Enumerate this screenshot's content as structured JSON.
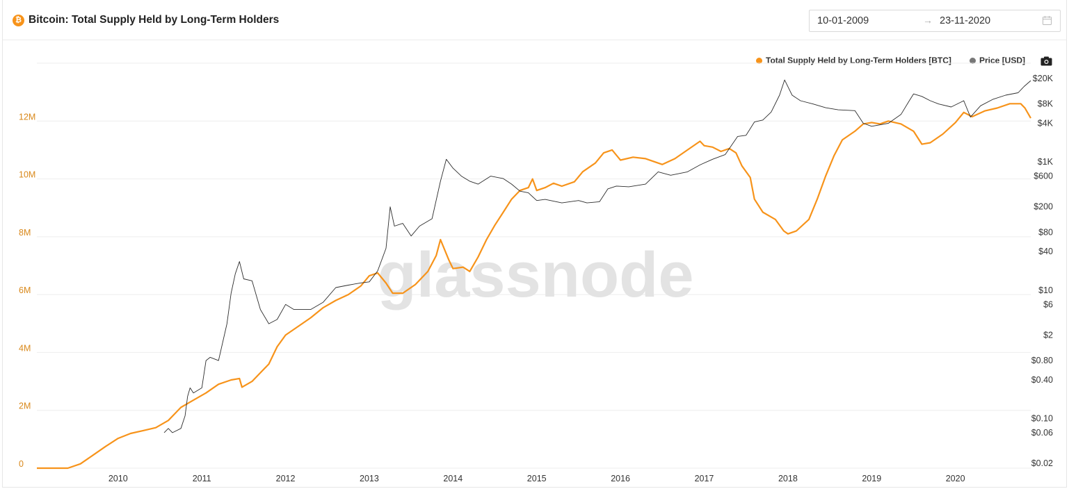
{
  "header": {
    "title": "Bitcoin: Total Supply Held by Long-Term Holders",
    "badge_icon": "bitcoin-icon",
    "date_from": "10-01-2009",
    "date_to": "23-11-2020",
    "arrow": "→",
    "calendar_icon": "calendar-icon"
  },
  "legend": {
    "supply_label": "Total Supply Held by Long-Term Holders [BTC]",
    "price_label": "Price [USD]",
    "camera_icon": "camera-icon"
  },
  "watermark": "glassnode",
  "colors": {
    "supply": "#f7931a",
    "price": "#2b2b2b",
    "grid": "#eeeeee",
    "left_axis": "#d9881a"
  },
  "chart_data": {
    "type": "line",
    "x_ticks": [
      "2010",
      "2011",
      "2012",
      "2013",
      "2014",
      "2015",
      "2016",
      "2017",
      "2018",
      "2019",
      "2020"
    ],
    "x_range": [
      2009.03,
      2020.9
    ],
    "y_left": {
      "ticks": [
        0,
        2000000,
        4000000,
        6000000,
        8000000,
        10000000,
        12000000
      ],
      "tick_labels": [
        "0",
        "2M",
        "4M",
        "6M",
        "8M",
        "10M",
        "12M"
      ],
      "range": [
        0,
        14000000
      ]
    },
    "y_right": {
      "scale": "log",
      "ticks": [
        0.02,
        0.06,
        0.1,
        0.4,
        0.8,
        2,
        6,
        10,
        40,
        80,
        200,
        600,
        1000,
        4000,
        8000,
        20000
      ],
      "tick_labels": [
        "$0.02",
        "$0.06",
        "$0.10",
        "$0.40",
        "$0.80",
        "$2",
        "$6",
        "$10",
        "$40",
        "$80",
        "$200",
        "$600",
        "$1K",
        "$4K",
        "$8K",
        "$20K"
      ]
    },
    "series": [
      {
        "name": "Total Supply Held by Long-Term Holders [BTC]",
        "axis": "left",
        "points": [
          [
            2009.03,
            0
          ],
          [
            2009.4,
            0
          ],
          [
            2009.55,
            150000
          ],
          [
            2009.7,
            450000
          ],
          [
            2009.85,
            750000
          ],
          [
            2010.0,
            1030000
          ],
          [
            2010.15,
            1200000
          ],
          [
            2010.3,
            1300000
          ],
          [
            2010.45,
            1400000
          ],
          [
            2010.6,
            1650000
          ],
          [
            2010.75,
            2100000
          ],
          [
            2010.9,
            2350000
          ],
          [
            2011.05,
            2600000
          ],
          [
            2011.2,
            2900000
          ],
          [
            2011.35,
            3050000
          ],
          [
            2011.45,
            3100000
          ],
          [
            2011.48,
            2800000
          ],
          [
            2011.6,
            3000000
          ],
          [
            2011.7,
            3300000
          ],
          [
            2011.8,
            3600000
          ],
          [
            2011.9,
            4200000
          ],
          [
            2012.0,
            4600000
          ],
          [
            2012.15,
            4900000
          ],
          [
            2012.3,
            5200000
          ],
          [
            2012.45,
            5550000
          ],
          [
            2012.6,
            5800000
          ],
          [
            2012.75,
            6000000
          ],
          [
            2012.9,
            6300000
          ],
          [
            2013.0,
            6650000
          ],
          [
            2013.1,
            6750000
          ],
          [
            2013.2,
            6400000
          ],
          [
            2013.28,
            6050000
          ],
          [
            2013.4,
            6050000
          ],
          [
            2013.55,
            6350000
          ],
          [
            2013.7,
            6800000
          ],
          [
            2013.8,
            7350000
          ],
          [
            2013.85,
            7900000
          ],
          [
            2013.95,
            7200000
          ],
          [
            2014.0,
            6900000
          ],
          [
            2014.12,
            6950000
          ],
          [
            2014.2,
            6800000
          ],
          [
            2014.3,
            7300000
          ],
          [
            2014.4,
            7900000
          ],
          [
            2014.5,
            8400000
          ],
          [
            2014.6,
            8850000
          ],
          [
            2014.7,
            9300000
          ],
          [
            2014.8,
            9600000
          ],
          [
            2014.9,
            9700000
          ],
          [
            2014.95,
            10000000
          ],
          [
            2015.0,
            9600000
          ],
          [
            2015.1,
            9700000
          ],
          [
            2015.2,
            9850000
          ],
          [
            2015.3,
            9750000
          ],
          [
            2015.45,
            9900000
          ],
          [
            2015.55,
            10250000
          ],
          [
            2015.7,
            10550000
          ],
          [
            2015.8,
            10900000
          ],
          [
            2015.9,
            11000000
          ],
          [
            2016.0,
            10650000
          ],
          [
            2016.15,
            10750000
          ],
          [
            2016.3,
            10700000
          ],
          [
            2016.5,
            10500000
          ],
          [
            2016.65,
            10700000
          ],
          [
            2016.8,
            11000000
          ],
          [
            2016.95,
            11300000
          ],
          [
            2017.0,
            11150000
          ],
          [
            2017.1,
            11100000
          ],
          [
            2017.2,
            10950000
          ],
          [
            2017.3,
            11050000
          ],
          [
            2017.38,
            10900000
          ],
          [
            2017.45,
            10450000
          ],
          [
            2017.55,
            10050000
          ],
          [
            2017.6,
            9300000
          ],
          [
            2017.7,
            8850000
          ],
          [
            2017.85,
            8600000
          ],
          [
            2017.95,
            8200000
          ],
          [
            2018.0,
            8100000
          ],
          [
            2018.1,
            8200000
          ],
          [
            2018.25,
            8600000
          ],
          [
            2018.35,
            9300000
          ],
          [
            2018.45,
            10100000
          ],
          [
            2018.55,
            10800000
          ],
          [
            2018.65,
            11350000
          ],
          [
            2018.8,
            11650000
          ],
          [
            2018.9,
            11900000
          ],
          [
            2019.0,
            11950000
          ],
          [
            2019.1,
            11900000
          ],
          [
            2019.2,
            12000000
          ],
          [
            2019.35,
            11900000
          ],
          [
            2019.5,
            11650000
          ],
          [
            2019.6,
            11200000
          ],
          [
            2019.7,
            11250000
          ],
          [
            2019.85,
            11550000
          ],
          [
            2020.0,
            11950000
          ],
          [
            2020.1,
            12300000
          ],
          [
            2020.2,
            12150000
          ],
          [
            2020.35,
            12350000
          ],
          [
            2020.5,
            12450000
          ],
          [
            2020.65,
            12600000
          ],
          [
            2020.78,
            12600000
          ],
          [
            2020.83,
            12450000
          ],
          [
            2020.9,
            12100000
          ]
        ]
      },
      {
        "name": "Price [USD]",
        "axis": "right",
        "points": [
          [
            2010.55,
            0.06
          ],
          [
            2010.6,
            0.07
          ],
          [
            2010.65,
            0.06
          ],
          [
            2010.75,
            0.07
          ],
          [
            2010.8,
            0.11
          ],
          [
            2010.83,
            0.22
          ],
          [
            2010.86,
            0.3
          ],
          [
            2010.9,
            0.25
          ],
          [
            2011.0,
            0.3
          ],
          [
            2011.05,
            0.8
          ],
          [
            2011.1,
            0.9
          ],
          [
            2011.2,
            0.8
          ],
          [
            2011.3,
            3
          ],
          [
            2011.35,
            9
          ],
          [
            2011.4,
            18
          ],
          [
            2011.45,
            28
          ],
          [
            2011.5,
            15
          ],
          [
            2011.6,
            14
          ],
          [
            2011.7,
            5
          ],
          [
            2011.8,
            3
          ],
          [
            2011.9,
            3.5
          ],
          [
            2012.0,
            6
          ],
          [
            2012.1,
            5
          ],
          [
            2012.3,
            5
          ],
          [
            2012.45,
            6.5
          ],
          [
            2012.6,
            11
          ],
          [
            2012.75,
            12
          ],
          [
            2012.9,
            13
          ],
          [
            2013.0,
            13.5
          ],
          [
            2013.1,
            20
          ],
          [
            2013.2,
            45
          ],
          [
            2013.25,
            200
          ],
          [
            2013.3,
            100
          ],
          [
            2013.4,
            110
          ],
          [
            2013.5,
            70
          ],
          [
            2013.6,
            100
          ],
          [
            2013.75,
            130
          ],
          [
            2013.85,
            500
          ],
          [
            2013.92,
            1100
          ],
          [
            2014.0,
            800
          ],
          [
            2014.1,
            600
          ],
          [
            2014.2,
            500
          ],
          [
            2014.3,
            450
          ],
          [
            2014.45,
            600
          ],
          [
            2014.6,
            550
          ],
          [
            2014.7,
            450
          ],
          [
            2014.8,
            350
          ],
          [
            2014.9,
            330
          ],
          [
            2015.0,
            250
          ],
          [
            2015.1,
            260
          ],
          [
            2015.3,
            230
          ],
          [
            2015.5,
            250
          ],
          [
            2015.6,
            230
          ],
          [
            2015.75,
            240
          ],
          [
            2015.85,
            380
          ],
          [
            2015.95,
            420
          ],
          [
            2016.1,
            410
          ],
          [
            2016.3,
            450
          ],
          [
            2016.45,
            700
          ],
          [
            2016.6,
            620
          ],
          [
            2016.8,
            700
          ],
          [
            2016.95,
            900
          ],
          [
            2017.1,
            1100
          ],
          [
            2017.25,
            1300
          ],
          [
            2017.4,
            2500
          ],
          [
            2017.5,
            2600
          ],
          [
            2017.6,
            4200
          ],
          [
            2017.7,
            4500
          ],
          [
            2017.8,
            6000
          ],
          [
            2017.9,
            11000
          ],
          [
            2017.96,
            19000
          ],
          [
            2018.05,
            11000
          ],
          [
            2018.15,
            9000
          ],
          [
            2018.3,
            8000
          ],
          [
            2018.45,
            7000
          ],
          [
            2018.6,
            6500
          ],
          [
            2018.8,
            6300
          ],
          [
            2018.9,
            4000
          ],
          [
            2019.0,
            3600
          ],
          [
            2019.2,
            4000
          ],
          [
            2019.35,
            5500
          ],
          [
            2019.45,
            9000
          ],
          [
            2019.5,
            11500
          ],
          [
            2019.6,
            10500
          ],
          [
            2019.7,
            9000
          ],
          [
            2019.8,
            8000
          ],
          [
            2019.95,
            7200
          ],
          [
            2020.1,
            9000
          ],
          [
            2020.18,
            5000
          ],
          [
            2020.3,
            7500
          ],
          [
            2020.45,
            9500
          ],
          [
            2020.6,
            11000
          ],
          [
            2020.75,
            12000
          ],
          [
            2020.82,
            15000
          ],
          [
            2020.9,
            18500
          ]
        ]
      }
    ]
  }
}
